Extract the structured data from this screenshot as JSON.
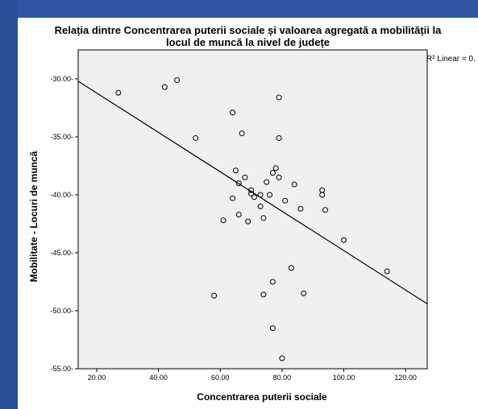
{
  "chart_data": {
    "type": "scatter",
    "title_line1": "Relația dintre Concentrarea puterii sociale și valoarea agregată a mobilității la",
    "title_line2": "locul de muncă la nivel de județe",
    "xlabel": "Concentrarea puterii sociale",
    "ylabel": "Mobilitate - Locuri de muncă",
    "xlim": [
      14,
      127
    ],
    "ylim": [
      -55,
      -27.5
    ],
    "x_ticks": [
      20,
      40,
      60,
      80,
      100,
      120
    ],
    "x_tick_labels": [
      "20.00",
      "40.00",
      "60.00",
      "80.00",
      "100.00",
      "120.00"
    ],
    "y_ticks": [
      -30,
      -35,
      -40,
      -45,
      -50,
      -55
    ],
    "y_tick_labels": [
      "-30.00-",
      "-35.00-",
      "-40.00-",
      "-45.00-",
      "-50.00-",
      "-55.00-"
    ],
    "r2_label": "R² Linear = 0.",
    "fit_line": {
      "x": [
        14,
        127
      ],
      "y": [
        -30.2,
        -49.4
      ]
    },
    "points": [
      [
        27,
        -31.2
      ],
      [
        42,
        -30.7
      ],
      [
        46,
        -30.1
      ],
      [
        52,
        -35.1
      ],
      [
        58,
        -48.7
      ],
      [
        61,
        -42.2
      ],
      [
        64,
        -32.9
      ],
      [
        64,
        -40.3
      ],
      [
        65,
        -37.9
      ],
      [
        66,
        -39.0
      ],
      [
        66,
        -41.7
      ],
      [
        67,
        -34.7
      ],
      [
        68,
        -38.5
      ],
      [
        69,
        -42.3
      ],
      [
        70,
        -39.6
      ],
      [
        70,
        -39.9
      ],
      [
        71,
        -40.2
      ],
      [
        73,
        -40.0
      ],
      [
        73,
        -41.0
      ],
      [
        74,
        -42.0
      ],
      [
        74,
        -48.6
      ],
      [
        75,
        -38.9
      ],
      [
        76,
        -40.0
      ],
      [
        77,
        -38.1
      ],
      [
        77,
        -47.5
      ],
      [
        77,
        -51.5
      ],
      [
        78,
        -37.7
      ],
      [
        79,
        -31.6
      ],
      [
        79,
        -35.1
      ],
      [
        79,
        -38.5
      ],
      [
        80,
        -54.1
      ],
      [
        81,
        -40.5
      ],
      [
        83,
        -46.3
      ],
      [
        84,
        -39.1
      ],
      [
        86,
        -41.2
      ],
      [
        87,
        -48.5
      ],
      [
        93,
        -39.6
      ],
      [
        93,
        -40.0
      ],
      [
        94,
        -41.3
      ],
      [
        100,
        -43.9
      ],
      [
        114,
        -46.6
      ]
    ]
  }
}
